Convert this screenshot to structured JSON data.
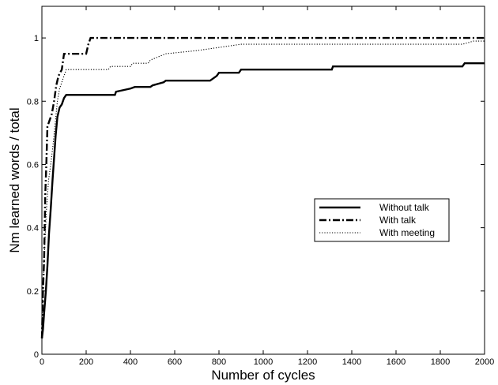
{
  "chart_data": {
    "type": "line",
    "title": "",
    "xlabel": "Number of cycles",
    "ylabel": "Nm learned words / total",
    "xlim": [
      0,
      2000
    ],
    "ylim": [
      0,
      1.1
    ],
    "xticks": [
      "0",
      "200",
      "400",
      "600",
      "800",
      "1000",
      "1200",
      "1400",
      "1600",
      "1800",
      "2000"
    ],
    "yticks": [
      "0",
      "0.2",
      "0.4",
      "0.6",
      "0.8",
      "1"
    ],
    "legend_position": "center-right",
    "grid": false,
    "series": [
      {
        "name": "Without talk",
        "style": "solid",
        "points": [
          [
            0,
            0.05
          ],
          [
            5,
            0.08
          ],
          [
            10,
            0.13
          ],
          [
            18,
            0.2
          ],
          [
            25,
            0.28
          ],
          [
            32,
            0.38
          ],
          [
            40,
            0.46
          ],
          [
            48,
            0.55
          ],
          [
            55,
            0.62
          ],
          [
            62,
            0.69
          ],
          [
            70,
            0.75
          ],
          [
            80,
            0.78
          ],
          [
            90,
            0.79
          ],
          [
            100,
            0.81
          ],
          [
            110,
            0.82
          ],
          [
            330,
            0.82
          ],
          [
            335,
            0.83
          ],
          [
            400,
            0.84
          ],
          [
            420,
            0.845
          ],
          [
            490,
            0.845
          ],
          [
            500,
            0.85
          ],
          [
            550,
            0.86
          ],
          [
            560,
            0.865
          ],
          [
            760,
            0.865
          ],
          [
            790,
            0.88
          ],
          [
            800,
            0.89
          ],
          [
            890,
            0.89
          ],
          [
            900,
            0.9
          ],
          [
            1310,
            0.9
          ],
          [
            1315,
            0.91
          ],
          [
            1900,
            0.91
          ],
          [
            1910,
            0.92
          ],
          [
            2000,
            0.92
          ]
        ]
      },
      {
        "name": "With talk",
        "style": "dashdot",
        "points": [
          [
            0,
            0.05
          ],
          [
            5,
            0.2
          ],
          [
            10,
            0.3
          ],
          [
            15,
            0.5
          ],
          [
            20,
            0.6
          ],
          [
            25,
            0.72
          ],
          [
            35,
            0.74
          ],
          [
            45,
            0.76
          ],
          [
            55,
            0.8
          ],
          [
            65,
            0.85
          ],
          [
            75,
            0.88
          ],
          [
            90,
            0.9
          ],
          [
            100,
            0.95
          ],
          [
            200,
            0.95
          ],
          [
            210,
            0.98
          ],
          [
            220,
            1.0
          ],
          [
            2000,
            1.0
          ]
        ]
      },
      {
        "name": "With meeting",
        "style": "dotted",
        "points": [
          [
            0,
            0.05
          ],
          [
            5,
            0.2
          ],
          [
            10,
            0.3
          ],
          [
            20,
            0.45
          ],
          [
            30,
            0.55
          ],
          [
            40,
            0.6
          ],
          [
            50,
            0.66
          ],
          [
            60,
            0.73
          ],
          [
            70,
            0.8
          ],
          [
            80,
            0.84
          ],
          [
            90,
            0.86
          ],
          [
            100,
            0.88
          ],
          [
            110,
            0.9
          ],
          [
            300,
            0.9
          ],
          [
            310,
            0.91
          ],
          [
            400,
            0.91
          ],
          [
            410,
            0.92
          ],
          [
            480,
            0.92
          ],
          [
            490,
            0.93
          ],
          [
            560,
            0.95
          ],
          [
            700,
            0.96
          ],
          [
            800,
            0.97
          ],
          [
            900,
            0.98
          ],
          [
            1000,
            0.98
          ],
          [
            1800,
            0.98
          ],
          [
            1900,
            0.98
          ],
          [
            1950,
            0.99
          ],
          [
            2000,
            0.99
          ]
        ]
      }
    ]
  }
}
